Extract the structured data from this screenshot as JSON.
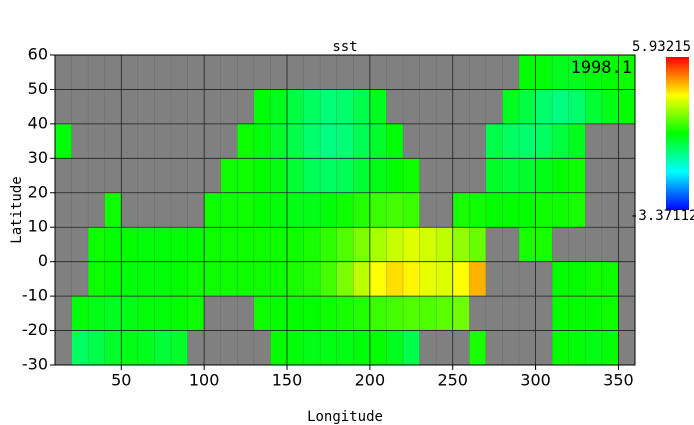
{
  "chart_data": {
    "type": "heatmap",
    "title": "sst",
    "annotation": "1998.1",
    "x_label": "Longitude",
    "y_label": "Latitude",
    "xlim": [
      10,
      360
    ],
    "ylim": [
      -30,
      60
    ],
    "xticks": [
      50,
      100,
      150,
      200,
      250,
      300,
      350
    ],
    "yticks": [
      -30,
      -20,
      -10,
      0,
      10,
      20,
      30,
      40,
      50,
      60
    ],
    "xbins": [
      10,
      20,
      30,
      40,
      50,
      60,
      70,
      80,
      90,
      100,
      110,
      120,
      130,
      140,
      150,
      160,
      170,
      180,
      190,
      200,
      210,
      220,
      230,
      240,
      250,
      260,
      270,
      280,
      290,
      300,
      310,
      320,
      330,
      340,
      350,
      360
    ],
    "ybins": [
      60,
      50,
      40,
      30,
      20,
      10,
      0,
      -10,
      -20,
      -30
    ],
    "zlim": [
      -3.37112,
      5.93215
    ],
    "colormap": [
      "#0000ff",
      "#00ffff",
      "#00ff00",
      "#ffff00",
      "#ff0000"
    ],
    "missing_color": "#808080",
    "grid": true,
    "z": [
      [
        null,
        null,
        null,
        null,
        null,
        null,
        null,
        null,
        null,
        null,
        null,
        null,
        null,
        null,
        null,
        null,
        null,
        null,
        null,
        null,
        null,
        null,
        null,
        null,
        null,
        null,
        null,
        null,
        1.3,
        1.2,
        1.0,
        1.0,
        1.2,
        1.3,
        1.4
      ],
      [
        null,
        null,
        null,
        null,
        null,
        null,
        null,
        null,
        null,
        null,
        null,
        null,
        1.2,
        1.0,
        0.7,
        0.4,
        0.2,
        0.3,
        0.6,
        1.0,
        null,
        null,
        null,
        null,
        null,
        null,
        null,
        1.0,
        0.7,
        0.3,
        0.1,
        0.3,
        0.8,
        1.1,
        1.3
      ],
      [
        1.2,
        null,
        null,
        null,
        null,
        null,
        null,
        null,
        null,
        null,
        null,
        1.4,
        1.2,
        0.9,
        0.6,
        0.3,
        0.1,
        0.2,
        0.5,
        0.9,
        1.2,
        null,
        null,
        null,
        null,
        null,
        0.6,
        0.4,
        0.3,
        0.4,
        0.7,
        1.0,
        null,
        null,
        null
      ],
      [
        null,
        null,
        null,
        null,
        null,
        null,
        null,
        null,
        null,
        null,
        1.4,
        1.4,
        1.3,
        1.1,
        0.8,
        0.5,
        0.4,
        0.5,
        0.8,
        1.1,
        1.3,
        1.4,
        null,
        null,
        null,
        null,
        0.9,
        0.8,
        0.9,
        1.1,
        1.3,
        1.4,
        null,
        null,
        null
      ],
      [
        null,
        null,
        null,
        1.4,
        null,
        null,
        null,
        null,
        null,
        1.4,
        1.4,
        1.4,
        1.3,
        1.2,
        1.1,
        1.1,
        1.2,
        1.4,
        1.6,
        1.8,
        1.9,
        1.8,
        null,
        null,
        1.5,
        1.4,
        1.3,
        1.3,
        1.3,
        1.4,
        1.4,
        1.5,
        null,
        null,
        null
      ],
      [
        null,
        null,
        1.4,
        1.3,
        1.3,
        1.2,
        1.2,
        1.3,
        1.3,
        1.4,
        1.4,
        1.4,
        1.4,
        1.4,
        1.4,
        1.5,
        1.7,
        2.0,
        2.4,
        2.8,
        3.1,
        3.3,
        3.2,
        3.0,
        2.6,
        2.2,
        null,
        null,
        1.5,
        1.5,
        null,
        null,
        null,
        null,
        null
      ],
      [
        null,
        null,
        1.4,
        1.3,
        1.2,
        1.2,
        1.2,
        1.3,
        1.4,
        1.4,
        1.4,
        1.4,
        1.4,
        1.4,
        1.5,
        1.6,
        1.9,
        2.4,
        3.0,
        3.6,
        3.9,
        3.7,
        3.4,
        3.3,
        3.6,
        4.3,
        null,
        null,
        null,
        null,
        1.3,
        1.3,
        1.4,
        1.4,
        null
      ],
      [
        null,
        1.2,
        1.1,
        1.0,
        1.1,
        1.2,
        1.2,
        1.3,
        1.4,
        null,
        null,
        null,
        1.4,
        1.3,
        1.3,
        1.3,
        1.4,
        1.5,
        1.6,
        1.8,
        1.9,
        2.0,
        2.0,
        2.1,
        2.3,
        null,
        null,
        null,
        null,
        null,
        1.3,
        1.3,
        1.3,
        1.4,
        null
      ],
      [
        null,
        0.4,
        0.6,
        0.9,
        1.1,
        1.0,
        0.8,
        0.9,
        null,
        null,
        null,
        null,
        null,
        1.3,
        1.2,
        1.1,
        1.1,
        1.1,
        1.2,
        1.3,
        1.0,
        0.6,
        null,
        null,
        null,
        1.5,
        null,
        null,
        null,
        null,
        1.3,
        1.2,
        1.1,
        1.2,
        null
      ]
    ]
  }
}
